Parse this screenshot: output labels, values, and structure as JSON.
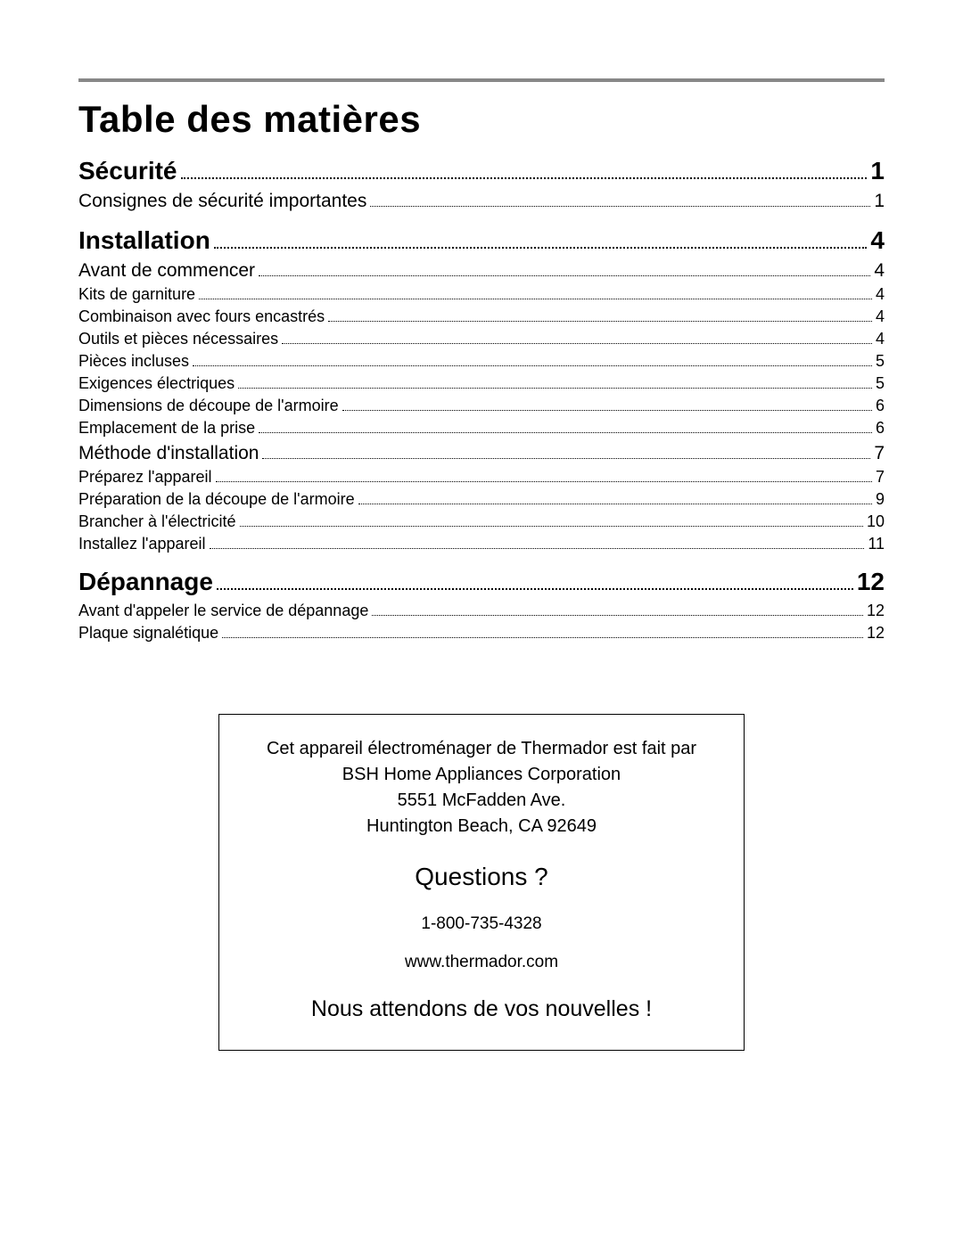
{
  "title": "Table des matières",
  "toc": {
    "sections": [
      {
        "label": "Sécurité",
        "page": "1",
        "items": [
          {
            "level": 2,
            "label": "Consignes de sécurité importantes",
            "page": "1"
          }
        ]
      },
      {
        "label": "Installation",
        "page": "4",
        "items": [
          {
            "level": 2,
            "label": "Avant de commencer",
            "page": "4"
          },
          {
            "level": 3,
            "label": "Kits de garniture",
            "page": "4"
          },
          {
            "level": 3,
            "label": "Combinaison avec fours encastrés",
            "page": "4"
          },
          {
            "level": 3,
            "label": "Outils et pièces nécessaires",
            "page": "4"
          },
          {
            "level": 3,
            "label": "Pièces incluses",
            "page": "5"
          },
          {
            "level": 3,
            "label": "Exigences électriques",
            "page": "5"
          },
          {
            "level": 3,
            "label": "Dimensions de découpe de l'armoire",
            "page": "6"
          },
          {
            "level": 3,
            "label": "Emplacement de la prise",
            "page": "6"
          },
          {
            "level": 2,
            "label": "Méthode d'installation",
            "page": "7"
          },
          {
            "level": 3,
            "label": "Préparez l'appareil",
            "page": "7"
          },
          {
            "level": 3,
            "label": "Préparation de la découpe de l'armoire",
            "page": "9"
          },
          {
            "level": 3,
            "label": "Brancher à l'électricité",
            "page": "10"
          },
          {
            "level": 3,
            "label": "Installez l'appareil",
            "page": "11"
          }
        ]
      },
      {
        "label": "Dépannage",
        "page": "12",
        "items": [
          {
            "level": 3,
            "label": "Avant d'appeler le service de dépannage",
            "page": "12"
          },
          {
            "level": 3,
            "label": "Plaque signalétique",
            "page": "12"
          }
        ]
      }
    ]
  },
  "info_box": {
    "line1": "Cet appareil électroménager de Thermador est fait par",
    "line2": "BSH Home Appliances Corporation",
    "line3": "5551 McFadden Ave.",
    "line4": "Huntington Beach, CA 92649",
    "questions": "Questions ?",
    "phone": "1-800-735-4328",
    "url": "www.thermador.com",
    "closing": "Nous attendons de vos nouvelles !"
  },
  "style": {
    "rule_color": "#888888",
    "text_color": "#000000",
    "title_fontsize": 42,
    "section_fontsize": 28,
    "level2_fontsize": 21,
    "level3_fontsize": 18,
    "info_fontsize": 20,
    "questions_fontsize": 28,
    "closing_fontsize": 25
  }
}
